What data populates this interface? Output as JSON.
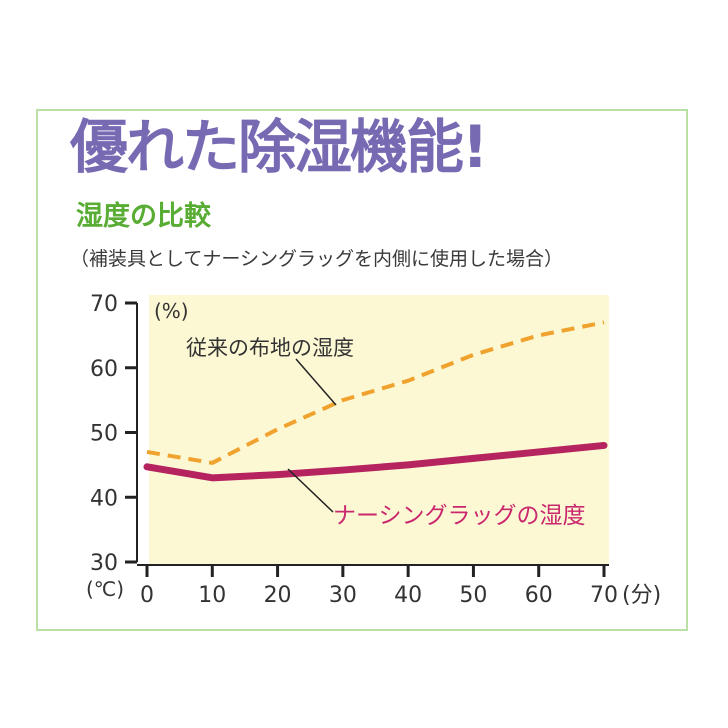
{
  "header": {
    "title": "優れた除湿機能!",
    "subtitle": "湿度の比較",
    "note": "（補装具としてナーシングラッグを内側に使用した場合）"
  },
  "colors": {
    "frame_border": "#b9e0a5",
    "title": "#7869b3",
    "subtitle": "#59ad35",
    "plot_background": "#fdf8d4",
    "series_orange": "#f0a22e",
    "series_magenta": "#b5245f",
    "magenta_label": "#c9286e"
  },
  "chart_data": {
    "type": "line",
    "x": [
      0,
      10,
      20,
      30,
      40,
      50,
      60,
      70
    ],
    "xlim": [
      0,
      70
    ],
    "ylim": [
      30,
      70
    ],
    "x_ticks": [
      "0",
      "10",
      "20",
      "30",
      "40",
      "50",
      "60",
      "70"
    ],
    "y_ticks": [
      "30",
      "40",
      "50",
      "60",
      "70"
    ],
    "y_unit": "(%)",
    "x_start_unit": "(℃)",
    "x_unit": "(分)",
    "grid": false,
    "series": [
      {
        "name": "従来の布地の湿度",
        "style": "dashed",
        "values": [
          47,
          45.3,
          50.5,
          55,
          58,
          62,
          65,
          67
        ]
      },
      {
        "name": "ナーシングラッグの湿度",
        "style": "solid",
        "values": [
          44.7,
          43,
          43.5,
          44.2,
          45,
          46,
          47,
          48
        ]
      }
    ]
  }
}
